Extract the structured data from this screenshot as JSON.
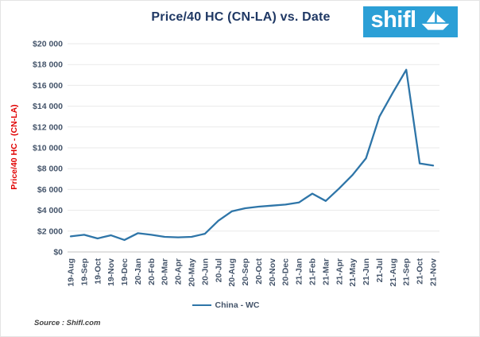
{
  "header": {
    "title": "Price/40 HC (CN-LA) vs. Date",
    "logo_text": "shifl"
  },
  "source_note": "Source : Shifl.com",
  "colors": {
    "line": "#2E75A8",
    "logo_bg": "#2B9FD6",
    "title_text": "#1F3864",
    "axis_label_red": "#E00000",
    "tick_text": "#44546A",
    "gridline": "#E9E9E9",
    "axis_line": "#C3C3C3"
  },
  "chart_data": {
    "type": "line",
    "title": "Price/40 HC (CN-LA) vs. Date",
    "xlabel": "Date",
    "ylabel": "Price/40 HC - (CN-LA)",
    "legend_position": "bottom",
    "grid": "horizontal",
    "ylim": [
      0,
      20000
    ],
    "y_ticks": [
      0,
      2000,
      4000,
      6000,
      8000,
      10000,
      12000,
      14000,
      16000,
      18000,
      20000
    ],
    "y_tick_labels": [
      "$0",
      "$2 000",
      "$4 000",
      "$6 000",
      "$8 000",
      "$10 000",
      "$12 000",
      "$14 000",
      "$16 000",
      "$18 000",
      "$20 000"
    ],
    "categories": [
      "19-Aug",
      "19-Sep",
      "19-Oct",
      "19-Nov",
      "19-Dec",
      "20-Jan",
      "20-Feb",
      "20-Mar",
      "20-Apr",
      "20-May",
      "20-Jun",
      "20-Jul",
      "20-Aug",
      "20-Sep",
      "20-Oct",
      "20-Nov",
      "20-Dec",
      "21-Jan",
      "21-Feb",
      "21-Mar",
      "21-Apr",
      "21-May",
      "21-Jun",
      "21-Jul",
      "21-Aug",
      "21-Sep",
      "21-Oct",
      "21-Nov"
    ],
    "series": [
      {
        "name": "China - WC",
        "values": [
          1500,
          1650,
          1300,
          1600,
          1150,
          1800,
          1650,
          1450,
          1400,
          1450,
          1750,
          3000,
          3900,
          4200,
          4350,
          4450,
          4550,
          4750,
          5600,
          4900,
          6100,
          7400,
          9000,
          13000,
          15300,
          17500,
          8500,
          8300
        ]
      }
    ]
  }
}
